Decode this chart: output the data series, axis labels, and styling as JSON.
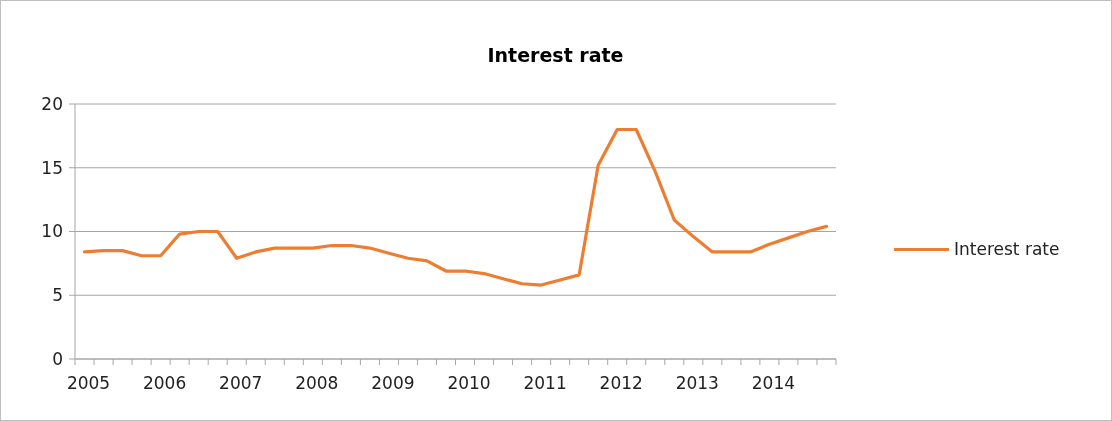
{
  "chart_data": {
    "type": "line",
    "title": "Interest rate",
    "categories": [
      "2005",
      null,
      null,
      null,
      "2006",
      null,
      null,
      null,
      "2007",
      null,
      null,
      null,
      "2008",
      null,
      null,
      null,
      "2009",
      null,
      null,
      null,
      "2010",
      null,
      null,
      null,
      "2011",
      null,
      null,
      null,
      "2012",
      null,
      null,
      null,
      "2013",
      null,
      null,
      null,
      "2014",
      null,
      null,
      null
    ],
    "series": [
      {
        "name": "Interest rate",
        "color": "#ed7d31",
        "values": [
          8.4,
          8.5,
          8.5,
          8.1,
          8.1,
          9.8,
          10,
          10,
          7.9,
          8.4,
          8.7,
          8.7,
          8.7,
          8.9,
          8.9,
          8.7,
          8.3,
          7.9,
          7.7,
          6.9,
          6.9,
          6.7,
          6.3,
          5.9,
          5.8,
          6.2,
          6.6,
          15.2,
          18,
          18,
          14.7,
          10.9,
          9.6,
          8.4,
          8.4,
          8.4,
          9.0,
          9.5,
          10.0,
          10.4
        ]
      }
    ],
    "ylim": [
      0,
      20
    ],
    "yticks": [
      0,
      5,
      10,
      15,
      20
    ],
    "grid": "y",
    "legend": "right",
    "marker": "none",
    "line_style": "solid"
  }
}
